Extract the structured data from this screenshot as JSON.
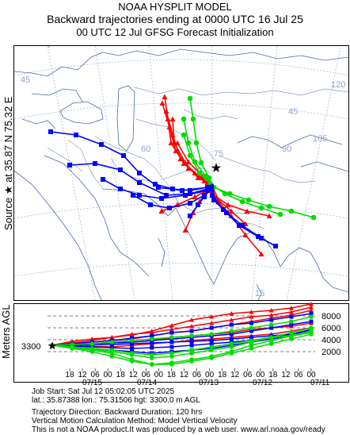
{
  "title": {
    "line1": "NOAA HYSPLIT MODEL",
    "line2": "Backward trajectories ending at 0000 UTC 16 Jul 25",
    "line3": "00 UTC 12 Jul    GFSG  Forecast Initialization"
  },
  "source_label": "Source ★  at   35.87 N   75.32 E",
  "height_axis_label": "Meters AGL",
  "map": {
    "longitude_labels": [
      "45",
      "60",
      "75",
      "90",
      "105",
      "120"
    ],
    "latitude_labels": [
      "15",
      "45"
    ],
    "source_marker": "star-icon"
  },
  "chart_data": {
    "type": "line",
    "title": "",
    "ylabel": "Meters AGL",
    "y_ticks": [
      "8000",
      "6000",
      "4000",
      "2000"
    ],
    "start_height": "3300",
    "ylim": [
      0,
      9000
    ],
    "x_tick_labels": [
      "18",
      "12",
      "06",
      "00",
      "18",
      "12",
      "06",
      "00",
      "18",
      "12",
      "06",
      "00",
      "18",
      "12",
      "06",
      "00",
      "18",
      "12",
      "06",
      "00"
    ],
    "date_labels": [
      "07/15",
      "07/14",
      "07/13",
      "07/12",
      "07/11"
    ],
    "series_colors": [
      "#ff0000",
      "#0000ff",
      "#00dd00"
    ]
  },
  "info": {
    "line1": "Job Start: Sat Jul 12 05:02:05 UTC 2025",
    "line2": "lat.: 35.87388   lon.: 75.31506   hgt: 3300.0 m AGL",
    "line3": "Trajectory Direction: Backward       Duration: 120 hrs",
    "line4": "Vertical Motion Calculation Method: Model Vertical Velocity",
    "line5": "This is not a NOAA product.It was produced by a web user. www.arl.noaa.gov/ready"
  }
}
